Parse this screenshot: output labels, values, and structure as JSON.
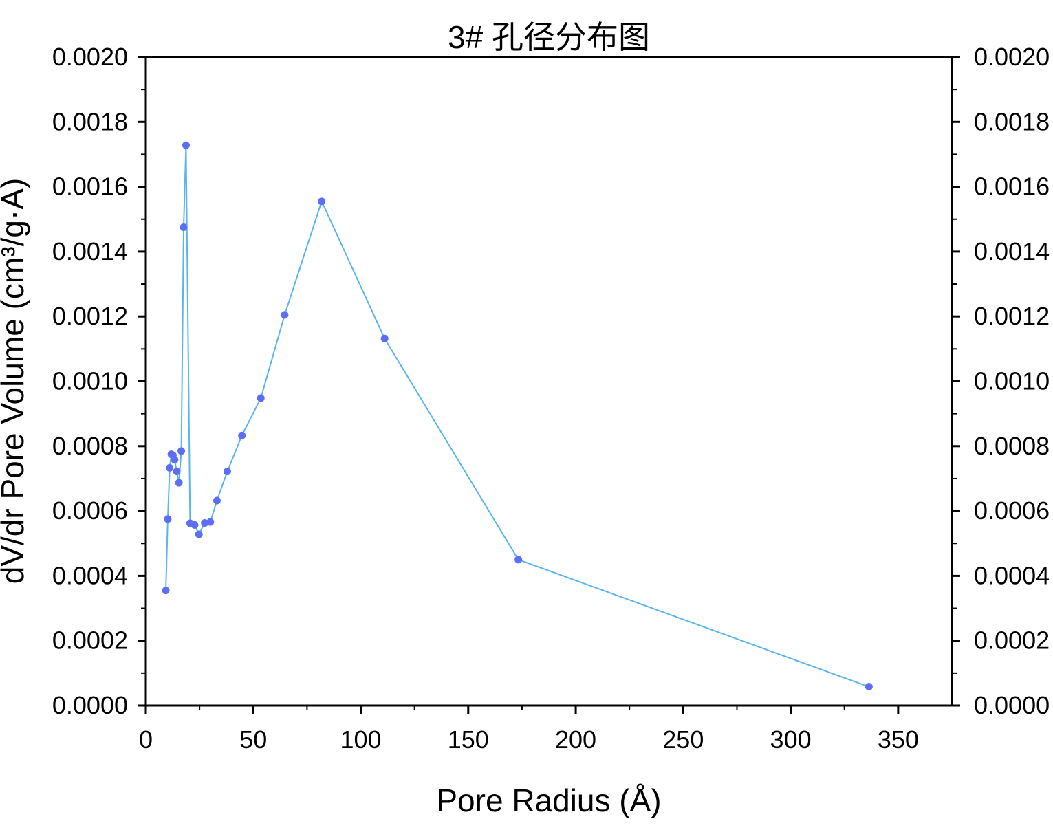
{
  "chart_data": {
    "type": "line",
    "title": "3# 孔径分布图",
    "xlabel": "Pore Radius (Å)",
    "ylabel": "dV/dr Pore Volume (cm³/g·A)",
    "xlim": [
      0,
      375
    ],
    "ylim": [
      0,
      0.002
    ],
    "x_ticks": [
      0,
      50,
      100,
      150,
      200,
      250,
      300,
      350
    ],
    "x_tick_labels": [
      "0",
      "50",
      "100",
      "150",
      "200",
      "250",
      "300",
      "350"
    ],
    "y_ticks": [
      0,
      0.0002,
      0.0004,
      0.0006,
      0.0008,
      0.001,
      0.0012,
      0.0014,
      0.0016,
      0.0018,
      0.002
    ],
    "y_tick_labels": [
      "0.0000",
      "0.0002",
      "0.0004",
      "0.0006",
      "0.0008",
      "0.0010",
      "0.0012",
      "0.0014",
      "0.0016",
      "0.0018",
      "0.0020"
    ],
    "right_axis_mirror": true,
    "grid": false,
    "line_color": "#5ab4ee",
    "marker_color": "#5b6ef5",
    "series": [
      {
        "name": "3#",
        "x": [
          9.3,
          10.2,
          11.1,
          11.9,
          12.6,
          13.4,
          14.4,
          15.4,
          16.5,
          17.6,
          18.7,
          20.6,
          22.7,
          24.7,
          27.4,
          30.0,
          33.1,
          37.9,
          44.7,
          53.5,
          64.6,
          81.8,
          111.1,
          173.3,
          336.4
        ],
        "y": [
          0.000355,
          0.000575,
          0.000733,
          0.000775,
          0.000772,
          0.000758,
          0.000722,
          0.000687,
          0.000785,
          0.001475,
          0.001728,
          0.000562,
          0.000557,
          0.000528,
          0.000563,
          0.000566,
          0.000632,
          0.000722,
          0.000833,
          0.000948,
          0.001205,
          0.001555,
          0.001132,
          0.00045,
          5.8e-05
        ]
      }
    ]
  }
}
